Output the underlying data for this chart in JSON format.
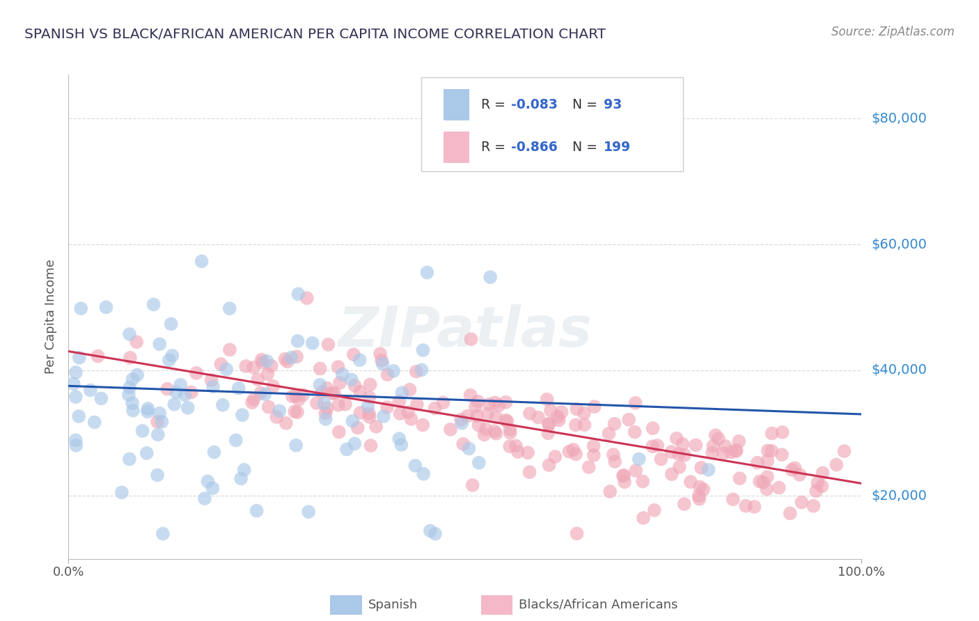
{
  "title": "SPANISH VS BLACK/AFRICAN AMERICAN PER CAPITA INCOME CORRELATION CHART",
  "source_text": "Source: ZipAtlas.com",
  "ylabel": "Per Capita Income",
  "x_min": 0.0,
  "x_max": 1.0,
  "y_min": 10000,
  "y_max": 87000,
  "yticks": [
    20000,
    40000,
    60000,
    80000
  ],
  "ytick_labels": [
    "$20,000",
    "$40,000",
    "$60,000",
    "$80,000"
  ],
  "blue_color": "#aac8e8",
  "pink_color": "#f0a8b8",
  "blue_line_color": "#2255aa",
  "pink_line_color": "#cc3355",
  "legend_blue_color": "#aac8e8",
  "legend_pink_color": "#f4b8c8",
  "R_blue": -0.083,
  "N_blue": 93,
  "R_pink": -0.866,
  "N_pink": 199,
  "watermark": "ZIPatlas",
  "background_color": "#ffffff",
  "grid_color": "#cccccc",
  "title_color": "#333355",
  "source_color": "#888888",
  "right_label_color": "#3388cc",
  "legend_text_color": "#333333",
  "legend_value_color": "#3366cc",
  "blue_trend_x0": 0.0,
  "blue_trend_y0": 37500,
  "blue_trend_x1": 1.0,
  "blue_trend_y1": 33000,
  "pink_trend_x0": 0.0,
  "pink_trend_y0": 43000,
  "pink_trend_x1": 1.0,
  "pink_trend_y1": 22000
}
